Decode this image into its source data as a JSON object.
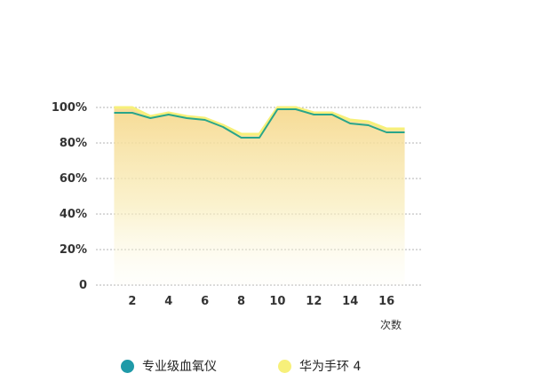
{
  "chart_data": {
    "type": "area",
    "xlabel": "次数",
    "ylabel": "",
    "xlim": [
      0,
      18
    ],
    "ylim": [
      0,
      100
    ],
    "x_ticks": [
      2,
      4,
      6,
      8,
      10,
      12,
      14,
      16
    ],
    "y_ticks": [
      0,
      20,
      40,
      60,
      80,
      100
    ],
    "y_tick_labels": [
      "0",
      "20%",
      "40%",
      "60%",
      "80%",
      "100%"
    ],
    "grid": "horizontal-dashed",
    "legend_position": "bottom",
    "x": [
      1,
      2,
      3,
      4,
      5,
      6,
      7,
      8,
      9,
      10,
      11,
      12,
      13,
      14,
      15,
      16,
      17
    ],
    "series": [
      {
        "name": "专业级血氧仪",
        "color": "#2aa58a",
        "values": [
          97,
          97,
          94,
          96,
          94,
          93,
          89,
          83,
          83,
          99,
          99,
          96,
          96,
          91,
          90,
          86,
          86
        ]
      },
      {
        "name": "华为手环 4",
        "color": "#f7f07a",
        "values": [
          100,
          100,
          95,
          97,
          95,
          94,
          90,
          85,
          85,
          100,
          100,
          97,
          97,
          93,
          92,
          88,
          88
        ]
      }
    ]
  }
}
